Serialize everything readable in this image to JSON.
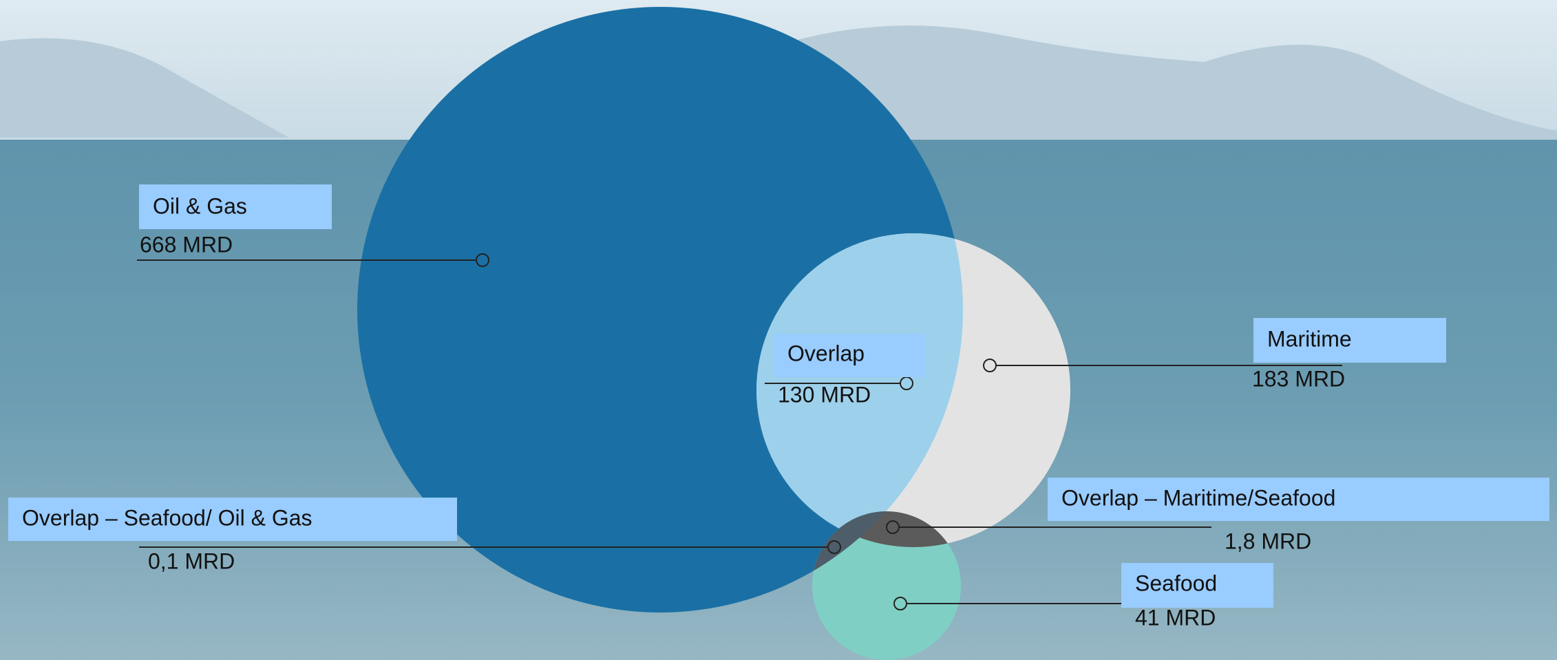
{
  "segments": [
    {
      "label": "Oil & Gas",
      "value": "668 MRD"
    },
    {
      "label": "Overlap",
      "value": "130 MRD"
    },
    {
      "label": "Maritime",
      "value": "183 MRD"
    },
    {
      "label": "Overlap – Maritime/Seafood",
      "value": "1,8 MRD"
    },
    {
      "label": "Seafood",
      "value": "41 MRD"
    },
    {
      "label": "Overlap – Seafood/ Oil & Gas",
      "value": "0,1 MRD"
    }
  ]
}
